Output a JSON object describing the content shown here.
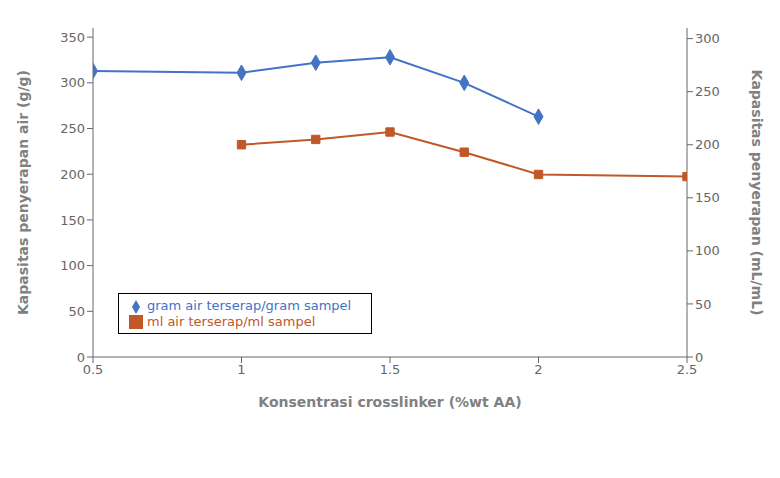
{
  "chart_data": {
    "type": "line",
    "x": [
      0.5,
      1.0,
      1.25,
      1.5,
      1.75,
      2.0,
      2.5
    ],
    "series": [
      {
        "name": "gram air terserap/gram sampel",
        "color": "#4472C4",
        "marker": "diamond",
        "values": [
          313,
          311,
          322,
          328,
          300,
          263,
          null
        ]
      },
      {
        "name": "ml air terserap/ml sampel",
        "color": "#C05828",
        "marker": "square",
        "axis": "y2",
        "values": [
          null,
          200,
          205,
          212,
          193,
          172,
          170
        ]
      }
    ],
    "x_label": "Konsentrasi crosslinker (%wt AA)",
    "y_label": "Kapasitas penyerapan air (g/g)",
    "y2_label": "Kapasitas penyerapan (mL/mL)",
    "xlim": [
      0.5,
      2.5
    ],
    "xticks": [
      0.5,
      1,
      1.5,
      2,
      2.5
    ],
    "ylim": [
      0,
      360
    ],
    "yticks": [
      0,
      50,
      100,
      150,
      200,
      250,
      300,
      350
    ],
    "y2lim": [
      0,
      310
    ],
    "y2ticks": [
      0,
      50,
      100,
      150,
      200,
      250,
      300
    ],
    "grid": false,
    "legend": "lower left"
  }
}
